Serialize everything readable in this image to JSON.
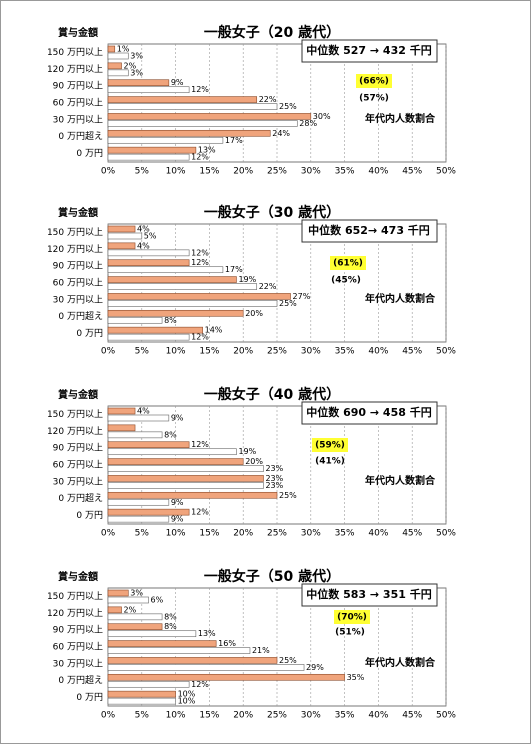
{
  "chart_data": [
    {
      "type": "bar",
      "orientation": "horizontal",
      "title": "一般女子（20 歳代）",
      "y_label": "賞与金額",
      "categories": [
        "150 万円以上",
        "120 万円以上",
        "90 万円以上",
        "60 万円以上",
        "30 万円以上",
        "0 万円超え",
        "0 万円"
      ],
      "series": [
        {
          "color": "#f0a47c",
          "values": [
            1,
            2,
            9,
            22,
            30,
            24,
            13
          ],
          "value_labels": [
            "1%",
            "2%",
            "9%",
            "22%",
            "30%",
            "24%",
            "13%"
          ]
        },
        {
          "color": "#ffffff",
          "values": [
            3,
            3,
            12,
            25,
            28,
            17,
            12
          ],
          "value_labels": [
            "3%",
            "3%",
            "12%",
            "25%",
            "28%",
            "17%",
            "12%"
          ]
        }
      ],
      "xlim": [
        0,
        50
      ],
      "xticks": [
        {
          "value": 0,
          "label": "0%"
        },
        {
          "value": 5,
          "label": "5%"
        },
        {
          "value": 10,
          "label": "10%"
        },
        {
          "value": 15,
          "label": "15%"
        },
        {
          "value": 20,
          "label": "20%"
        },
        {
          "value": 25,
          "label": "25%"
        },
        {
          "value": 30,
          "label": "30%"
        },
        {
          "value": 35,
          "label": "35%"
        },
        {
          "value": 40,
          "label": "40%"
        },
        {
          "value": 45,
          "label": "45%"
        },
        {
          "value": 50,
          "label": "50%"
        }
      ],
      "grid": true,
      "median_box": "中位数 527 → 432 千円",
      "annotations": [
        {
          "text": "(66%)",
          "highlight": "#ffff33"
        },
        {
          "text": "(57%)"
        },
        {
          "text": "年代内人数割合"
        }
      ]
    },
    {
      "type": "bar",
      "orientation": "horizontal",
      "title": "一般女子（30 歳代）",
      "y_label": "賞与金額",
      "categories": [
        "150 万円以上",
        "120 万円以上",
        "90 万円以上",
        "60 万円以上",
        "30 万円以上",
        "0 万円超え",
        "0 万円"
      ],
      "series": [
        {
          "color": "#f0a47c",
          "values": [
            4,
            4,
            12,
            19,
            27,
            20,
            14
          ],
          "value_labels": [
            "4%",
            "4%",
            "12%",
            "19%",
            "27%",
            "20%",
            "14%"
          ]
        },
        {
          "color": "#ffffff",
          "values": [
            5,
            12,
            17,
            22,
            25,
            8,
            12
          ],
          "value_labels": [
            "5%",
            "12%",
            "17%",
            "22%",
            "25%",
            "8%",
            "12%"
          ]
        }
      ],
      "xlim": [
        0,
        50
      ],
      "xticks": [
        {
          "value": 0,
          "label": "0%"
        },
        {
          "value": 5,
          "label": "5%"
        },
        {
          "value": 10,
          "label": "10%"
        },
        {
          "value": 15,
          "label": "15%"
        },
        {
          "value": 20,
          "label": "20%"
        },
        {
          "value": 25,
          "label": "25%"
        },
        {
          "value": 30,
          "label": "30%"
        },
        {
          "value": 35,
          "label": "35%"
        },
        {
          "value": 40,
          "label": "40%"
        },
        {
          "value": 45,
          "label": "45%"
        },
        {
          "value": 50,
          "label": "50%"
        }
      ],
      "grid": true,
      "median_box": "中位数 652→ 473 千円",
      "annotations": [
        {
          "text": "(61%)",
          "highlight": "#ffff33"
        },
        {
          "text": "(45%)"
        },
        {
          "text": "年代内人数割合"
        }
      ]
    },
    {
      "type": "bar",
      "orientation": "horizontal",
      "title": "一般女子（40 歳代）",
      "y_label": "賞与金額",
      "categories": [
        "150 万円以上",
        "120 万円以上",
        "90 万円以上",
        "60 万円以上",
        "30 万円以上",
        "0 万円超え",
        "0 万円"
      ],
      "series": [
        {
          "color": "#f0a47c",
          "values": [
            4,
            4,
            12,
            20,
            23,
            25,
            12
          ],
          "value_labels": [
            "4%",
            null,
            "12%",
            "20%",
            "23%",
            "25%",
            "12%"
          ]
        },
        {
          "color": "#ffffff",
          "values": [
            9,
            8,
            19,
            23,
            23,
            9,
            9
          ],
          "value_labels": [
            "9%",
            "8%",
            "19%",
            "23%",
            "23%",
            "9%",
            "9%"
          ]
        }
      ],
      "xlim": [
        0,
        50
      ],
      "xticks": [
        {
          "value": 0,
          "label": "0%"
        },
        {
          "value": 5,
          "label": "5%"
        },
        {
          "value": 10,
          "label": "10%"
        },
        {
          "value": 15,
          "label": "15%"
        },
        {
          "value": 20,
          "label": "20%"
        },
        {
          "value": 25,
          "label": "25%"
        },
        {
          "value": 30,
          "label": "30%"
        },
        {
          "value": 35,
          "label": "35%"
        },
        {
          "value": 40,
          "label": "40%"
        },
        {
          "value": 45,
          "label": "45%"
        },
        {
          "value": 50,
          "label": "50%"
        }
      ],
      "grid": true,
      "median_box": "中位数 690 → 458 千円",
      "annotations": [
        {
          "text": "(59%)",
          "highlight": "#ffff33"
        },
        {
          "text": "(41%)"
        },
        {
          "text": "年代内人数割合"
        }
      ]
    },
    {
      "type": "bar",
      "orientation": "horizontal",
      "title": "一般女子（50 歳代）",
      "y_label": "賞与金額",
      "categories": [
        "150 万円以上",
        "120 万円以上",
        "90 万円以上",
        "60 万円以上",
        "30 万円以上",
        "0 万円超え",
        "0 万円"
      ],
      "series": [
        {
          "color": "#f0a47c",
          "values": [
            3,
            2,
            8,
            16,
            25,
            35,
            10
          ],
          "value_labels": [
            "3%",
            "2%",
            "8%",
            "16%",
            "25%",
            "35%",
            "10%"
          ]
        },
        {
          "color": "#ffffff",
          "values": [
            6,
            8,
            13,
            21,
            29,
            12,
            10
          ],
          "value_labels": [
            "6%",
            "8%",
            "13%",
            "21%",
            "29%",
            "12%",
            "10%"
          ]
        }
      ],
      "xlim": [
        0,
        50
      ],
      "xticks": [
        {
          "value": 0,
          "label": "0%"
        },
        {
          "value": 5,
          "label": "5%"
        },
        {
          "value": 10,
          "label": "10%"
        },
        {
          "value": 15,
          "label": "15%"
        },
        {
          "value": 20,
          "label": "20%"
        },
        {
          "value": 25,
          "label": "25%"
        },
        {
          "value": 30,
          "label": "30%"
        },
        {
          "value": 35,
          "label": "35%"
        },
        {
          "value": 40,
          "label": "40%"
        },
        {
          "value": 45,
          "label": "45%"
        },
        {
          "value": 50,
          "label": "50%"
        }
      ],
      "grid": true,
      "median_box": "中位数 583 → 351 千円",
      "annotations": [
        {
          "text": "(70%)",
          "highlight": "#ffff33"
        },
        {
          "text": "(51%)"
        },
        {
          "text": "年代内人数割合"
        }
      ]
    }
  ]
}
